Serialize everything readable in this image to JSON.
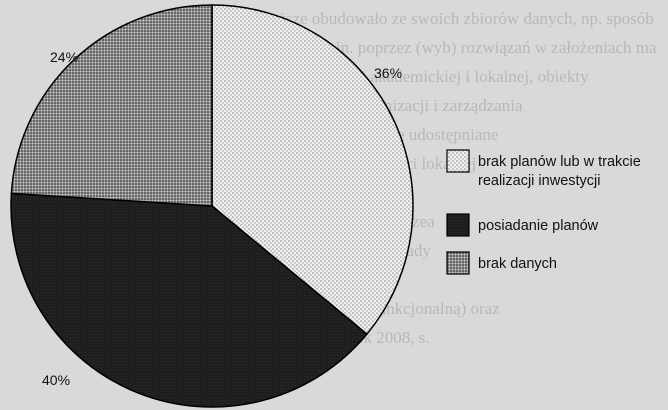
{
  "background_lines": [
    "zeczni wyższe obudowało ze swoich zbiorów danych, np. sposób",
    "przestrzennym, m.in. poprzez (wyb) rozwiązań w założeniach ma",
    "sponatów społeczności akademickiej i lokalnej, obiekty",
    "oryczne i techniczne organizacji i zarządzania",
    "nast: obiekty uniwersyteckie udostępniane",
    "równiez dla całej społeczności lokalnej",
    "h podsławy, co jest istotne dla",
    "dostępniają swoje galerie, muzea",
    "owe, prowadzą otwarte wykłady",
    "ki: społeczność akademicka",
    "ch strukturę społeczną (funkcjonalną) oraz",
    "a kulturowa) (Wolaniuk 2008, s."
  ],
  "chart_data": {
    "type": "pie",
    "title": "",
    "slices": [
      {
        "label": "brak planów lub w trakcie realizacji inwestycji",
        "value": 36,
        "display": "36%",
        "pattern": "dots-light"
      },
      {
        "label": "posiadanie planów",
        "value": 40,
        "display": "40%",
        "pattern": "dark"
      },
      {
        "label": "brak danych",
        "value": 24,
        "display": "24%",
        "pattern": "dots-dense"
      }
    ],
    "legend": [
      {
        "lines": [
          "brak planów lub w trakcie",
          "realizacji inwestycji"
        ],
        "pattern": "dots-light"
      },
      {
        "lines": [
          "posiadanie planów"
        ],
        "pattern": "dark"
      },
      {
        "lines": [
          "brak danych"
        ],
        "pattern": "dots-dense"
      }
    ],
    "legend_position": "right",
    "start_angle_deg": 0,
    "direction": "clockwise"
  }
}
